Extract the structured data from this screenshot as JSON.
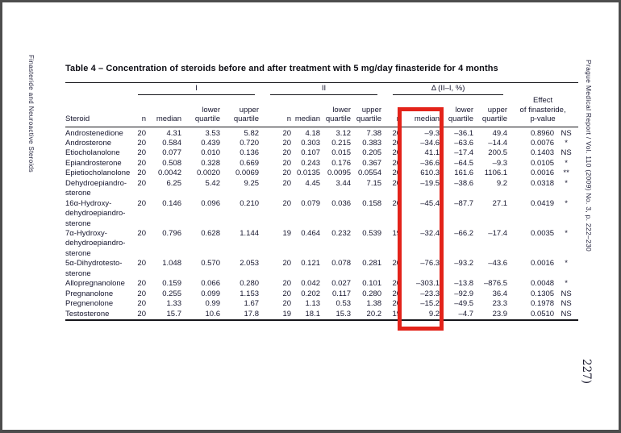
{
  "page": {
    "side_left_text": "Finasteride and Neuroactive Steroids",
    "side_right_text": "Prague Medical Report / Vol. 110 (2009) No. 3, p. 222–230",
    "page_number": "227)"
  },
  "table": {
    "title": "Table 4 – Concentration of steroids before and after treatment with 5 mg/day finasteride for 4 months",
    "groups": [
      {
        "label": "I"
      },
      {
        "label": "II"
      },
      {
        "label": "Δ (II–I, %)"
      }
    ],
    "headers": {
      "steroid": "Steroid",
      "n": "n",
      "median": "median",
      "lower": "lower\nquartile",
      "upper": "upper\nquartile",
      "effect": "Effect\nof finasteride,\np-value"
    },
    "rows": [
      {
        "steroid": "Androstenedione",
        "I": [
          "20",
          "4.31",
          "3.53",
          "5.82"
        ],
        "II": [
          "20",
          "4.18",
          "3.12",
          "7.38"
        ],
        "delta": [
          "20",
          "–9.3",
          "–36.1",
          "49.4"
        ],
        "p": "0.8960",
        "sig": "NS"
      },
      {
        "steroid": "Androsterone",
        "I": [
          "20",
          "0.584",
          "0.439",
          "0.720"
        ],
        "II": [
          "20",
          "0.303",
          "0.215",
          "0.383"
        ],
        "delta": [
          "20",
          "–34.6",
          "–63.6",
          "–14.4"
        ],
        "p": "0.0076",
        "sig": "*"
      },
      {
        "steroid": "Etiocholanolone",
        "I": [
          "20",
          "0.077",
          "0.010",
          "0.136"
        ],
        "II": [
          "20",
          "0.107",
          "0.015",
          "0.205"
        ],
        "delta": [
          "20",
          "41.1",
          "–17.4",
          "200.5"
        ],
        "p": "0.1403",
        "sig": "NS"
      },
      {
        "steroid": "Epiandrosterone",
        "I": [
          "20",
          "0.508",
          "0.328",
          "0.669"
        ],
        "II": [
          "20",
          "0.243",
          "0.176",
          "0.367"
        ],
        "delta": [
          "20",
          "–36.6",
          "–64.5",
          "–9.3"
        ],
        "p": "0.0105",
        "sig": "*"
      },
      {
        "steroid": "Epietiocholanolone",
        "I": [
          "20",
          "0.0042",
          "0.0020",
          "0.0069"
        ],
        "II": [
          "20",
          "0.0135",
          "0.0095",
          "0.0554"
        ],
        "delta": [
          "20",
          "610.3",
          "161.6",
          "1106.1"
        ],
        "p": "0.0016",
        "sig": "**"
      },
      {
        "steroid": "Dehydroepiandro-\nsterone",
        "I": [
          "20",
          "6.25",
          "5.42",
          "9.25"
        ],
        "II": [
          "20",
          "4.45",
          "3.44",
          "7.15"
        ],
        "delta": [
          "20",
          "–19.5",
          "–38.6",
          "9.2"
        ],
        "p": "0.0318",
        "sig": "*"
      },
      {
        "steroid": "16α-Hydroxy-\ndehydroepiandro-\nsterone",
        "I": [
          "20",
          "0.146",
          "0.096",
          "0.210"
        ],
        "II": [
          "20",
          "0.079",
          "0.036",
          "0.158"
        ],
        "delta": [
          "20",
          "–45.4",
          "–87.7",
          "27.1"
        ],
        "p": "0.0419",
        "sig": "*"
      },
      {
        "steroid": "7α-Hydroxy-\ndehydroepiandro-\nsterone",
        "I": [
          "20",
          "0.796",
          "0.628",
          "1.144"
        ],
        "II": [
          "19",
          "0.464",
          "0.232",
          "0.539"
        ],
        "delta": [
          "19",
          "–32.4",
          "–66.2",
          "–17.4"
        ],
        "p": "0.0035",
        "sig": "*"
      },
      {
        "steroid": "5α-Dihydrotesto-\nsterone",
        "I": [
          "20",
          "1.048",
          "0.570",
          "2.053"
        ],
        "II": [
          "20",
          "0.121",
          "0.078",
          "0.281"
        ],
        "delta": [
          "20",
          "–76.3",
          "–93.2",
          "–43.6"
        ],
        "p": "0.0016",
        "sig": "*"
      },
      {
        "steroid": "Allopregnanolone",
        "I": [
          "20",
          "0.159",
          "0.066",
          "0.280"
        ],
        "II": [
          "20",
          "0.042",
          "0.027",
          "0.101"
        ],
        "delta": [
          "20",
          "–303.1",
          "–13.8",
          "–876.5"
        ],
        "p": "0.0048",
        "sig": "*"
      },
      {
        "steroid": "Pregnanolone",
        "I": [
          "20",
          "0.255",
          "0.099",
          "1.153"
        ],
        "II": [
          "20",
          "0.202",
          "0.117",
          "0.280"
        ],
        "delta": [
          "20",
          "–23.3",
          "–92.9",
          "36.4"
        ],
        "p": "0.1305",
        "sig": "NS"
      },
      {
        "steroid": "Pregnenolone",
        "I": [
          "20",
          "1.33",
          "0.99",
          "1.67"
        ],
        "II": [
          "20",
          "1.13",
          "0.53",
          "1.38"
        ],
        "delta": [
          "20",
          "–15.2",
          "–49.5",
          "23.3"
        ],
        "p": "0.1978",
        "sig": "NS"
      },
      {
        "steroid": "Testosterone",
        "I": [
          "20",
          "15.7",
          "10.6",
          "17.8"
        ],
        "II": [
          "19",
          "18.1",
          "15.3",
          "20.2"
        ],
        "delta": [
          "19",
          "9.2",
          "–4.7",
          "23.9"
        ],
        "p": "0.0510",
        "sig": "NS"
      }
    ]
  },
  "highlight": {
    "color": "#e3231a",
    "target": "delta-median-column"
  }
}
